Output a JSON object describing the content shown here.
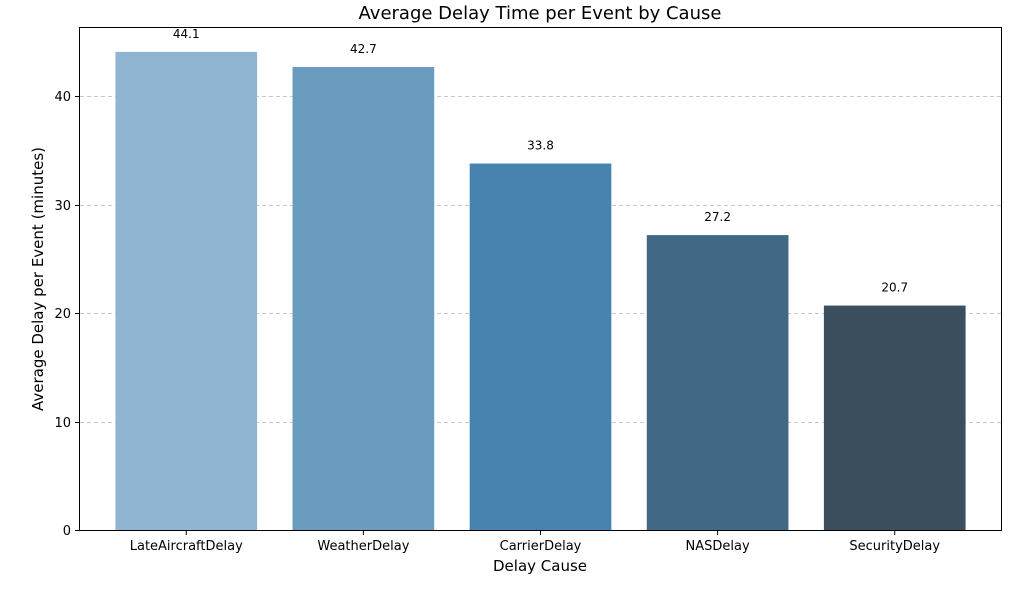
{
  "chart_data": {
    "type": "bar",
    "title": "Average Delay Time per Event by Cause",
    "xlabel": "Delay Cause",
    "ylabel": "Average Delay per Event (minutes)",
    "categories": [
      "LateAircraftDelay",
      "WeatherDelay",
      "CarrierDelay",
      "NASDelay",
      "SecurityDelay"
    ],
    "values": [
      44.1,
      42.7,
      33.8,
      27.2,
      20.7
    ],
    "value_labels": [
      "44.1",
      "42.7",
      "33.8",
      "27.2",
      "20.7"
    ],
    "colors": [
      "#90b5d1",
      "#6a9cc0",
      "#4883b0",
      "#416884",
      "#3c4f5e"
    ],
    "ylim": [
      0,
      46.3
    ],
    "yticks": [
      0,
      10,
      20,
      30,
      40
    ],
    "ytick_labels": [
      "0",
      "10",
      "20",
      "30",
      "40"
    ],
    "grid": true,
    "grid_axis": "y",
    "legend": false
  }
}
